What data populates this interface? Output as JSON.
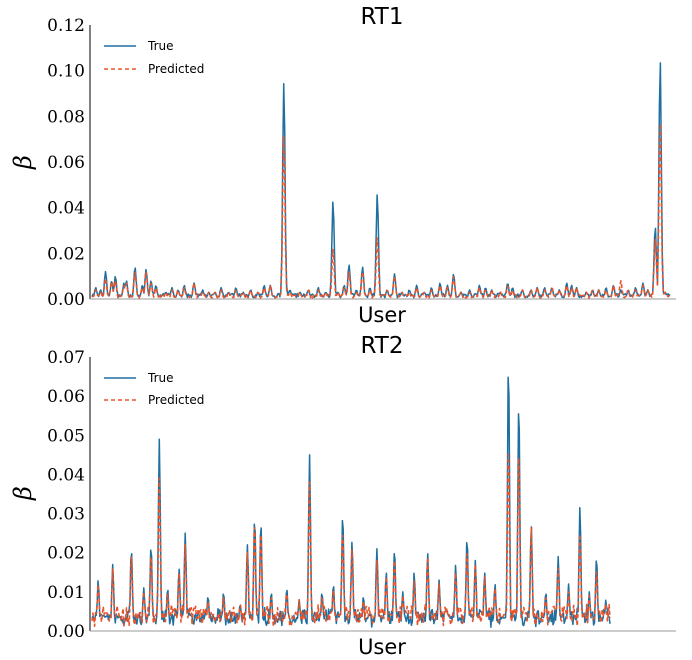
{
  "colors": {
    "true": "#1f6f9f",
    "predicted": "#e8532a",
    "axis": "#000000"
  },
  "chart_data": [
    {
      "type": "line",
      "title": "RT1",
      "xlabel": "User",
      "ylabel": "β",
      "ylim": [
        0,
        0.12
      ],
      "yticks": [
        "0.00",
        "0.02",
        "0.04",
        "0.06",
        "0.08",
        "0.10",
        "0.12"
      ],
      "legend": "top-left",
      "grid": false,
      "x_points": 300,
      "series": [
        {
          "name": "True",
          "style": "solid",
          "baseline": 0.0015,
          "peaks": [
            [
              3,
              0.005
            ],
            [
              7,
              0.004
            ],
            [
              11,
              0.012
            ],
            [
              16,
              0.008
            ],
            [
              19,
              0.01
            ],
            [
              26,
              0.007
            ],
            [
              28,
              0.008
            ],
            [
              35,
              0.014
            ],
            [
              41,
              0.006
            ],
            [
              44,
              0.013
            ],
            [
              48,
              0.008
            ],
            [
              52,
              0.006
            ],
            [
              60,
              0.003
            ],
            [
              65,
              0.005
            ],
            [
              70,
              0.004
            ],
            [
              75,
              0.006
            ],
            [
              83,
              0.007
            ],
            [
              90,
              0.004
            ],
            [
              95,
              0.003
            ],
            [
              100,
              0.003
            ],
            [
              105,
              0.005
            ],
            [
              111,
              0.003
            ],
            [
              117,
              0.005
            ],
            [
              123,
              0.003
            ],
            [
              129,
              0.004
            ],
            [
              135,
              0.003
            ],
            [
              140,
              0.006
            ],
            [
              145,
              0.006
            ],
            [
              156,
              0.095
            ],
            [
              161,
              0.004
            ],
            [
              169,
              0.003
            ],
            [
              176,
              0.004
            ],
            [
              184,
              0.005
            ],
            [
              190,
              0.003
            ],
            [
              196,
              0.043
            ],
            [
              200,
              0.003
            ],
            [
              205,
              0.006
            ],
            [
              209,
              0.015
            ],
            [
              215,
              0.004
            ],
            [
              220,
              0.014
            ],
            [
              226,
              0.005
            ],
            [
              232,
              0.046
            ],
            [
              240,
              0.004
            ],
            [
              246,
              0.011
            ],
            [
              252,
              0.003
            ],
            [
              258,
              0.004
            ],
            [
              264,
              0.006
            ],
            [
              270,
              0.003
            ],
            [
              276,
              0.005
            ],
            [
              283,
              0.007
            ],
            [
              289,
              0.006
            ],
            [
              294,
              0.011
            ],
            [
              300,
              0.003
            ],
            [
              307,
              0.004
            ],
            [
              315,
              0.006
            ],
            [
              320,
              0.005
            ],
            [
              325,
              0.004
            ],
            [
              332,
              0.003
            ],
            [
              338,
              0.007
            ],
            [
              342,
              0.005
            ],
            [
              350,
              0.004
            ],
            [
              357,
              0.004
            ],
            [
              362,
              0.005
            ],
            [
              368,
              0.005
            ],
            [
              374,
              0.005
            ],
            [
              380,
              0.004
            ],
            [
              386,
              0.007
            ],
            [
              390,
              0.006
            ],
            [
              394,
              0.005
            ],
            [
              402,
              0.003
            ],
            [
              407,
              0.004
            ],
            [
              412,
              0.004
            ],
            [
              418,
              0.005
            ],
            [
              424,
              0.006
            ],
            [
              430,
              0.004
            ],
            [
              436,
              0.004
            ],
            [
              442,
              0.005
            ],
            [
              448,
              0.007
            ],
            [
              452,
              0.004
            ],
            [
              458,
              0.032
            ],
            [
              462,
              0.105
            ],
            [
              466,
              0.003
            ],
            [
              470,
              0.002
            ]
          ],
          "x_span": 470
        },
        {
          "name": "Predicted",
          "style": "dashed",
          "baseline": 0.0012,
          "peaks": [
            [
              3,
              0.004
            ],
            [
              7,
              0.003
            ],
            [
              11,
              0.009
            ],
            [
              16,
              0.008
            ],
            [
              19,
              0.008
            ],
            [
              26,
              0.006
            ],
            [
              28,
              0.007
            ],
            [
              35,
              0.012
            ],
            [
              41,
              0.005
            ],
            [
              44,
              0.012
            ],
            [
              48,
              0.007
            ],
            [
              52,
              0.005
            ],
            [
              60,
              0.003
            ],
            [
              65,
              0.004
            ],
            [
              70,
              0.004
            ],
            [
              75,
              0.005
            ],
            [
              83,
              0.007
            ],
            [
              90,
              0.003
            ],
            [
              95,
              0.003
            ],
            [
              100,
              0.003
            ],
            [
              105,
              0.004
            ],
            [
              111,
              0.003
            ],
            [
              117,
              0.004
            ],
            [
              123,
              0.003
            ],
            [
              129,
              0.004
            ],
            [
              135,
              0.003
            ],
            [
              140,
              0.005
            ],
            [
              145,
              0.006
            ],
            [
              156,
              0.072
            ],
            [
              161,
              0.003
            ],
            [
              169,
              0.003
            ],
            [
              176,
              0.004
            ],
            [
              184,
              0.004
            ],
            [
              190,
              0.003
            ],
            [
              196,
              0.022
            ],
            [
              200,
              0.003
            ],
            [
              205,
              0.005
            ],
            [
              209,
              0.012
            ],
            [
              215,
              0.003
            ],
            [
              220,
              0.012
            ],
            [
              226,
              0.004
            ],
            [
              232,
              0.027
            ],
            [
              240,
              0.004
            ],
            [
              246,
              0.01
            ],
            [
              252,
              0.003
            ],
            [
              258,
              0.003
            ],
            [
              264,
              0.005
            ],
            [
              270,
              0.003
            ],
            [
              276,
              0.004
            ],
            [
              283,
              0.006
            ],
            [
              289,
              0.005
            ],
            [
              294,
              0.01
            ],
            [
              300,
              0.003
            ],
            [
              307,
              0.003
            ],
            [
              315,
              0.005
            ],
            [
              320,
              0.004
            ],
            [
              325,
              0.004
            ],
            [
              332,
              0.003
            ],
            [
              338,
              0.006
            ],
            [
              342,
              0.004
            ],
            [
              350,
              0.004
            ],
            [
              357,
              0.004
            ],
            [
              362,
              0.005
            ],
            [
              368,
              0.004
            ],
            [
              374,
              0.005
            ],
            [
              380,
              0.004
            ],
            [
              386,
              0.006
            ],
            [
              390,
              0.005
            ],
            [
              394,
              0.005
            ],
            [
              402,
              0.003
            ],
            [
              407,
              0.004
            ],
            [
              412,
              0.004
            ],
            [
              418,
              0.004
            ],
            [
              424,
              0.006
            ],
            [
              430,
              0.008
            ],
            [
              436,
              0.004
            ],
            [
              442,
              0.004
            ],
            [
              448,
              0.006
            ],
            [
              452,
              0.004
            ],
            [
              458,
              0.027
            ],
            [
              462,
              0.078
            ],
            [
              466,
              0.003
            ],
            [
              470,
              0.002
            ]
          ],
          "x_span": 470
        }
      ]
    },
    {
      "type": "line",
      "title": "RT2",
      "xlabel": "User",
      "ylabel": "β",
      "ylim": [
        0,
        0.07
      ],
      "yticks": [
        "0.00",
        "0.01",
        "0.02",
        "0.03",
        "0.04",
        "0.05",
        "0.06",
        "0.07"
      ],
      "legend": "top-left",
      "grid": false,
      "series": [
        {
          "name": "True",
          "style": "solid",
          "baseline": 0.002,
          "peaks": [
            [
              6,
              0.013
            ],
            [
              20,
              0.017
            ],
            [
              38,
              0.021
            ],
            [
              50,
              0.011
            ],
            [
              57,
              0.022
            ],
            [
              65,
              0.049
            ],
            [
              73,
              0.011
            ],
            [
              84,
              0.016
            ],
            [
              90,
              0.025
            ],
            [
              112,
              0.009
            ],
            [
              127,
              0.01
            ],
            [
              143,
              0.007
            ],
            [
              150,
              0.022
            ],
            [
              157,
              0.029
            ],
            [
              163,
              0.028
            ],
            [
              173,
              0.01
            ],
            [
              188,
              0.011
            ],
            [
              200,
              0.008
            ],
            [
              210,
              0.045
            ],
            [
              222,
              0.01
            ],
            [
              233,
              0.012
            ],
            [
              242,
              0.03
            ],
            [
              251,
              0.023
            ],
            [
              262,
              0.009
            ],
            [
              275,
              0.021
            ],
            [
              284,
              0.015
            ],
            [
              292,
              0.021
            ],
            [
              300,
              0.01
            ],
            [
              311,
              0.015
            ],
            [
              324,
              0.02
            ],
            [
              335,
              0.013
            ],
            [
              351,
              0.017
            ],
            [
              362,
              0.024
            ],
            [
              370,
              0.018
            ],
            [
              379,
              0.015
            ],
            [
              389,
              0.012
            ],
            [
              402,
              0.069
            ],
            [
              412,
              0.059
            ],
            [
              424,
              0.027
            ],
            [
              438,
              0.01
            ],
            [
              450,
              0.019
            ],
            [
              460,
              0.012
            ],
            [
              471,
              0.032
            ],
            [
              480,
              0.01
            ],
            [
              487,
              0.019
            ],
            [
              496,
              0.008
            ]
          ],
          "x_span": 500
        },
        {
          "name": "Predicted",
          "style": "dashed",
          "baseline": 0.0025,
          "peaks": [
            [
              6,
              0.012
            ],
            [
              20,
              0.016
            ],
            [
              38,
              0.02
            ],
            [
              50,
              0.01
            ],
            [
              57,
              0.02
            ],
            [
              65,
              0.039
            ],
            [
              73,
              0.01
            ],
            [
              84,
              0.015
            ],
            [
              90,
              0.022
            ],
            [
              112,
              0.008
            ],
            [
              127,
              0.009
            ],
            [
              143,
              0.007
            ],
            [
              150,
              0.02
            ],
            [
              157,
              0.028
            ],
            [
              163,
              0.026
            ],
            [
              173,
              0.009
            ],
            [
              188,
              0.01
            ],
            [
              200,
              0.008
            ],
            [
              210,
              0.038
            ],
            [
              222,
              0.009
            ],
            [
              233,
              0.011
            ],
            [
              242,
              0.026
            ],
            [
              251,
              0.021
            ],
            [
              262,
              0.008
            ],
            [
              275,
              0.018
            ],
            [
              284,
              0.014
            ],
            [
              292,
              0.019
            ],
            [
              300,
              0.009
            ],
            [
              311,
              0.013
            ],
            [
              324,
              0.019
            ],
            [
              335,
              0.012
            ],
            [
              351,
              0.015
            ],
            [
              362,
              0.021
            ],
            [
              370,
              0.017
            ],
            [
              379,
              0.014
            ],
            [
              389,
              0.011
            ],
            [
              402,
              0.048
            ],
            [
              412,
              0.047
            ],
            [
              424,
              0.027
            ],
            [
              438,
              0.009
            ],
            [
              450,
              0.016
            ],
            [
              460,
              0.01
            ],
            [
              471,
              0.025
            ],
            [
              480,
              0.009
            ],
            [
              487,
              0.016
            ],
            [
              496,
              0.007
            ]
          ],
          "x_span": 500
        }
      ]
    }
  ]
}
